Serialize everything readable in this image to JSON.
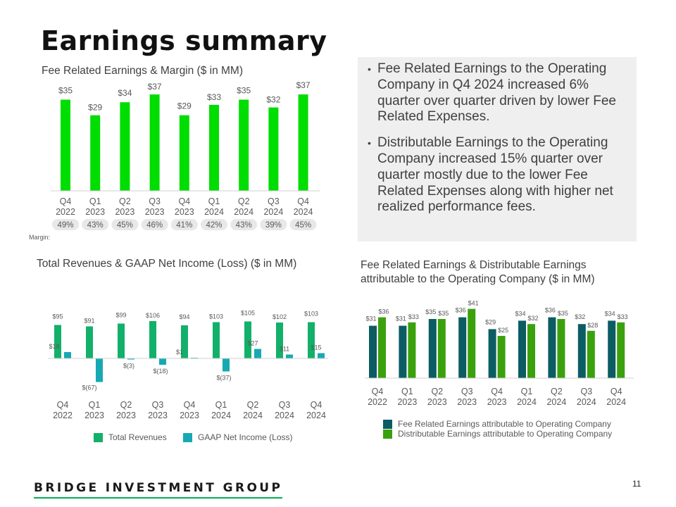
{
  "page_title": "Earnings summary",
  "callout": {
    "bullets": [
      "Fee Related Earnings to the Operating Company in Q4 2024 increased 6% quarter over quarter driven by lower Fee Related Expenses.",
      "Distributable Earnings to the Operating Company increased 15% quarter over quarter mostly due to the lower Fee Related Expenses along with higher net realized performance fees."
    ]
  },
  "colors": {
    "bright_green": "#00dd00",
    "revenue_green": "#12b06a",
    "income_teal": "#16a9b3",
    "fre_dark": "#0c5c63",
    "de_green": "#3aa10d",
    "pill_gray": "#e8e8e8",
    "text_gray": "#595959"
  },
  "footer": {
    "brand": "BRIDGE INVESTMENT GROUP",
    "page_number": "11"
  },
  "chart_data": [
    {
      "id": "fre_margin",
      "type": "bar",
      "title": "Fee Related Earnings & Margin ($ in MM)",
      "categories": [
        "Q4 2022",
        "Q1 2023",
        "Q2 2023",
        "Q3 2023",
        "Q4 2023",
        "Q1 2024",
        "Q2 2024",
        "Q3 2024",
        "Q4 2024"
      ],
      "values": [
        35,
        29,
        34,
        37,
        29,
        33,
        35,
        32,
        37
      ],
      "data_labels": [
        "$35",
        "$29",
        "$34",
        "$37",
        "$29",
        "$33",
        "$35",
        "$32",
        "$37"
      ],
      "margin_label": "Margin:",
      "margins": [
        "49%",
        "43%",
        "45%",
        "46%",
        "41%",
        "42%",
        "43%",
        "39%",
        "45%"
      ],
      "ylim": [
        0,
        40
      ]
    },
    {
      "id": "revenues_net_income",
      "type": "bar",
      "title": "Total Revenues & GAAP Net Income (Loss) ($ in MM)",
      "categories": [
        "Q4 2022",
        "Q1 2023",
        "Q2 2023",
        "Q3 2023",
        "Q4 2023",
        "Q1 2024",
        "Q2 2024",
        "Q3 2024",
        "Q4 2024"
      ],
      "series": [
        {
          "name": "Total Revenues",
          "values": [
            95,
            91,
            99,
            106,
            94,
            103,
            105,
            102,
            103
          ],
          "labels": [
            "$95",
            "$91",
            "$99",
            "$106",
            "$94",
            "$103",
            "$105",
            "$102",
            "$103"
          ]
        },
        {
          "name": "GAAP Net Income (Loss)",
          "values": [
            18,
            -67,
            -3,
            -18,
            1,
            -37,
            27,
            11,
            15
          ],
          "labels": [
            "$18",
            "$(67)",
            "$(3)",
            "$(18)",
            "$1",
            "$(37)",
            "$27",
            "$11",
            "$15"
          ]
        }
      ],
      "ylim": [
        -70,
        110
      ]
    },
    {
      "id": "fre_de_operating",
      "type": "bar",
      "title": "Fee Related Earnings & Distributable Earnings attributable to the Operating Company ($ in MM)",
      "categories": [
        "Q4 2022",
        "Q1 2023",
        "Q2 2023",
        "Q3 2023",
        "Q4 2023",
        "Q1 2024",
        "Q2 2024",
        "Q3 2024",
        "Q4 2024"
      ],
      "series": [
        {
          "name": "Fee Related Earnings attributable to Operating Company",
          "values": [
            31,
            31,
            35,
            36,
            29,
            34,
            36,
            32,
            34
          ],
          "labels": [
            "$31",
            "$31",
            "$35",
            "$36",
            "$29",
            "$34",
            "$36",
            "$32",
            "$34"
          ]
        },
        {
          "name": "Distributable Earnings attributable to Operating Company",
          "values": [
            36,
            33,
            35,
            41,
            25,
            32,
            35,
            28,
            33
          ],
          "labels": [
            "$36",
            "$33",
            "$35",
            "$41",
            "$25",
            "$32",
            "$35",
            "$28",
            "$33"
          ]
        }
      ],
      "ylim": [
        0,
        45
      ]
    }
  ]
}
